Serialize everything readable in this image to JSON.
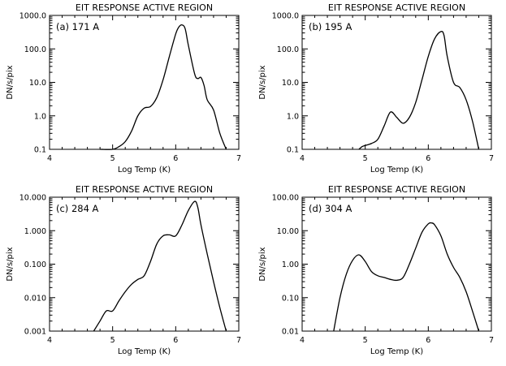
{
  "chart_data": [
    {
      "type": "line",
      "title": "EIT RESPONSE ACTIVE REGION",
      "label": "(a) 171 A",
      "xlabel": "Log Temp (K)",
      "ylabel": "DN/s/pix",
      "xlim": [
        4,
        7
      ],
      "ylim": [
        0.1,
        1000
      ],
      "yscale": "log",
      "xticks": [
        "4",
        "5",
        "6",
        "7"
      ],
      "yticks": [
        "0.1",
        "1.0",
        "10.0",
        "100.0",
        "1000.0"
      ],
      "yticks_values": [
        0.1,
        1,
        10,
        100,
        1000
      ],
      "series": [
        {
          "name": "171 A",
          "x": [
            4.8,
            5.0,
            5.1,
            5.2,
            5.3,
            5.4,
            5.5,
            5.6,
            5.7,
            5.8,
            5.9,
            6.0,
            6.05,
            6.1,
            6.15,
            6.2,
            6.3,
            6.35,
            6.4,
            6.45,
            6.5,
            6.6,
            6.7,
            6.8
          ],
          "y": [
            0.1,
            0.1,
            0.12,
            0.17,
            0.35,
            1.0,
            1.7,
            1.9,
            3.5,
            12,
            60,
            280,
            450,
            520,
            400,
            130,
            18,
            13,
            14,
            8,
            3,
            1.5,
            0.3,
            0.1
          ]
        }
      ]
    },
    {
      "type": "line",
      "title": "EIT RESPONSE ACTIVE REGION",
      "label": "(b) 195 A",
      "xlabel": "Log Temp (K)",
      "ylabel": "DN/s/pix",
      "xlim": [
        4,
        7
      ],
      "ylim": [
        0.1,
        1000
      ],
      "yscale": "log",
      "xticks": [
        "4",
        "5",
        "6",
        "7"
      ],
      "yticks": [
        "0.1",
        "1.0",
        "10.0",
        "100.0",
        "1000.0"
      ],
      "yticks_values": [
        0.1,
        1,
        10,
        100,
        1000
      ],
      "series": [
        {
          "name": "195 A",
          "x": [
            4.9,
            4.95,
            5.0,
            5.1,
            5.2,
            5.3,
            5.4,
            5.5,
            5.6,
            5.7,
            5.8,
            5.9,
            6.0,
            6.1,
            6.2,
            6.25,
            6.3,
            6.4,
            6.5,
            6.6,
            6.7,
            6.8
          ],
          "y": [
            0.1,
            0.12,
            0.13,
            0.15,
            0.2,
            0.5,
            1.3,
            0.9,
            0.6,
            0.9,
            2.5,
            12,
            60,
            200,
            330,
            250,
            60,
            10,
            7,
            3,
            0.7,
            0.1
          ]
        }
      ]
    },
    {
      "type": "line",
      "title": "EIT RESPONSE ACTIVE REGION",
      "label": "(c) 284 A",
      "xlabel": "Log Temp (K)",
      "ylabel": "DN/s/pix",
      "xlim": [
        4,
        7
      ],
      "ylim": [
        0.001,
        10
      ],
      "yscale": "log",
      "xticks": [
        "4",
        "5",
        "6",
        "7"
      ],
      "yticks": [
        "0.001",
        "0.010",
        "0.100",
        "1.000",
        "10.000"
      ],
      "yticks_values": [
        0.001,
        0.01,
        0.1,
        1,
        10
      ],
      "series": [
        {
          "name": "284 A",
          "x": [
            4.7,
            4.8,
            4.9,
            5.0,
            5.1,
            5.2,
            5.3,
            5.4,
            5.5,
            5.6,
            5.7,
            5.8,
            5.9,
            6.0,
            6.1,
            6.2,
            6.3,
            6.35,
            6.4,
            6.5,
            6.6,
            6.7,
            6.8
          ],
          "y": [
            0.001,
            0.002,
            0.004,
            0.004,
            0.008,
            0.015,
            0.025,
            0.035,
            0.045,
            0.12,
            0.4,
            0.7,
            0.75,
            0.7,
            1.5,
            4,
            7.5,
            5,
            1.5,
            0.2,
            0.03,
            0.005,
            0.001
          ]
        }
      ]
    },
    {
      "type": "line",
      "title": "EIT RESPONSE ACTIVE REGION",
      "label": "(d) 304 A",
      "xlabel": "Log Temp (K)",
      "ylabel": "DN/s/pix",
      "xlim": [
        4,
        7
      ],
      "ylim": [
        0.01,
        100
      ],
      "yscale": "log",
      "xticks": [
        "4",
        "5",
        "6",
        "7"
      ],
      "yticks": [
        "0.01",
        "0.10",
        "1.00",
        "10.00",
        "100.00"
      ],
      "yticks_values": [
        0.01,
        0.1,
        1,
        10,
        100
      ],
      "series": [
        {
          "name": "304 A",
          "x": [
            4.5,
            4.6,
            4.7,
            4.8,
            4.9,
            5.0,
            5.1,
            5.2,
            5.3,
            5.4,
            5.5,
            5.6,
            5.7,
            5.8,
            5.9,
            6.0,
            6.05,
            6.1,
            6.2,
            6.3,
            6.4,
            6.5,
            6.6,
            6.7,
            6.8
          ],
          "y": [
            0.01,
            0.1,
            0.5,
            1.3,
            1.9,
            1.2,
            0.6,
            0.45,
            0.4,
            0.35,
            0.33,
            0.4,
            1.0,
            3,
            9,
            16,
            17,
            15,
            7,
            2,
            0.8,
            0.4,
            0.15,
            0.04,
            0.01
          ]
        }
      ]
    }
  ]
}
